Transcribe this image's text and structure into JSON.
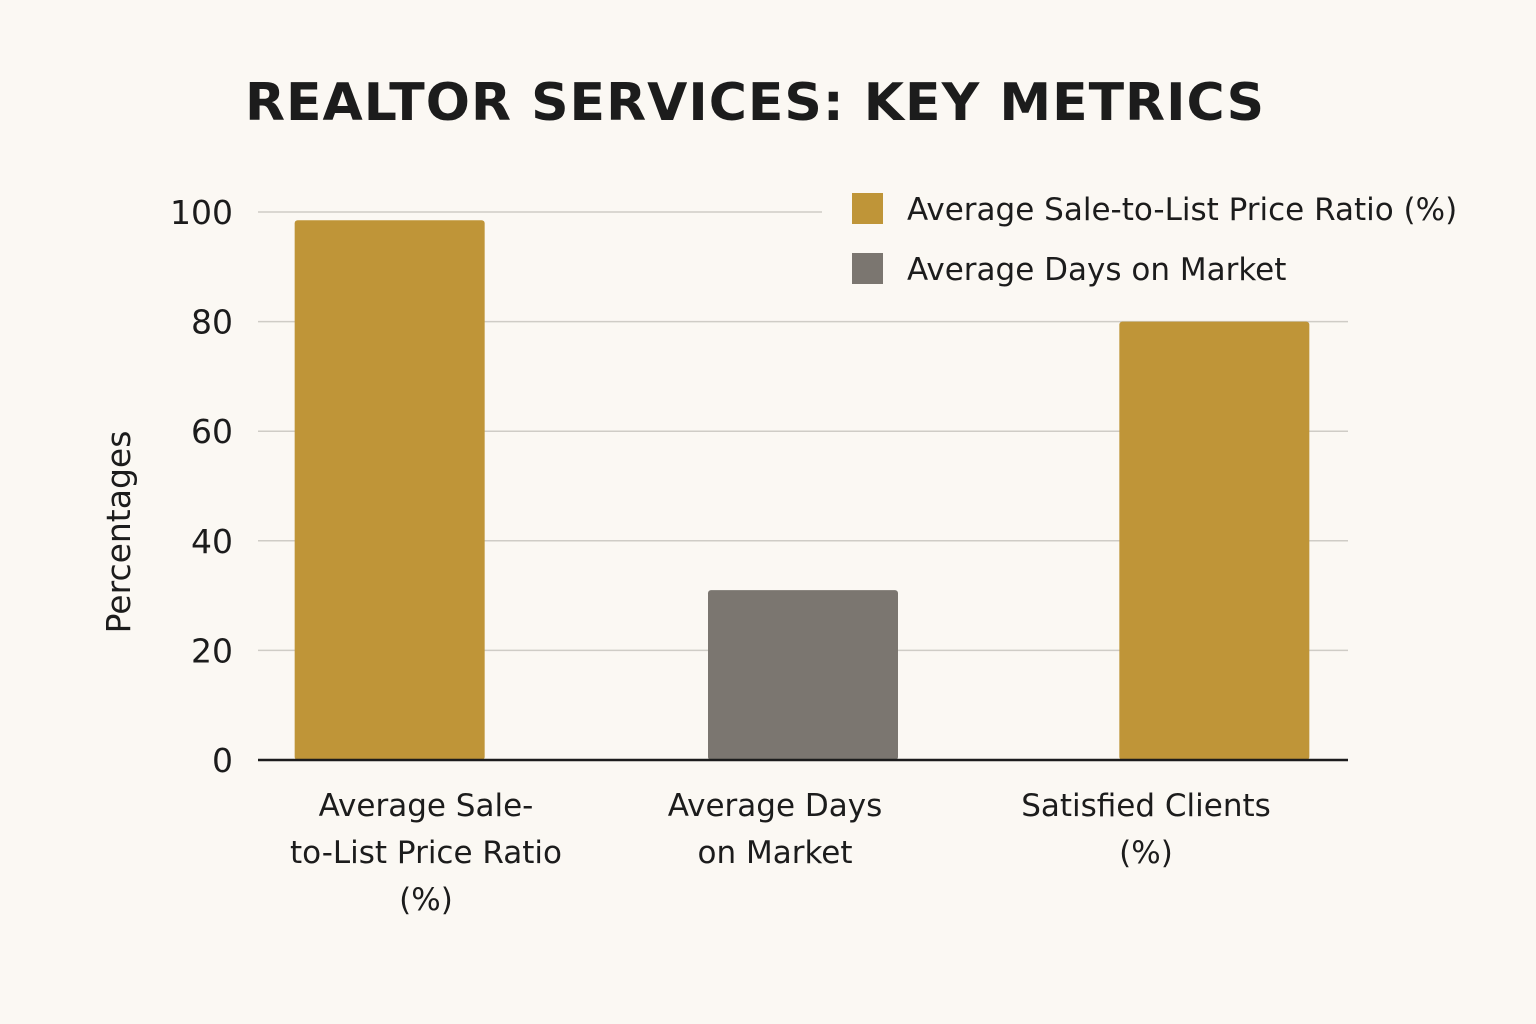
{
  "chart_data": {
    "type": "bar",
    "title": "REALTOR SERVICES: KEY METRICS",
    "ylabel": "Percentages",
    "xlabel": "",
    "ylim": [
      0,
      100
    ],
    "yticks": [
      0,
      20,
      40,
      60,
      80,
      100
    ],
    "grid": true,
    "legend_position": "top-right",
    "categories": [
      [
        "Average Sale-",
        "to-List Price Ratio",
        "(%)"
      ],
      [
        "Average Days",
        "on Market"
      ],
      [
        "Satisfied Clients",
        "(%)"
      ]
    ],
    "values": [
      98.5,
      31,
      80
    ],
    "bar_colors": [
      "#bf9538",
      "#7b7670",
      "#bf9538"
    ],
    "legend": [
      {
        "label": "Average Sale-to-List Price Ratio (%)",
        "color": "#bf9538"
      },
      {
        "label": "Average Days on Market",
        "color": "#7b7670"
      }
    ]
  }
}
